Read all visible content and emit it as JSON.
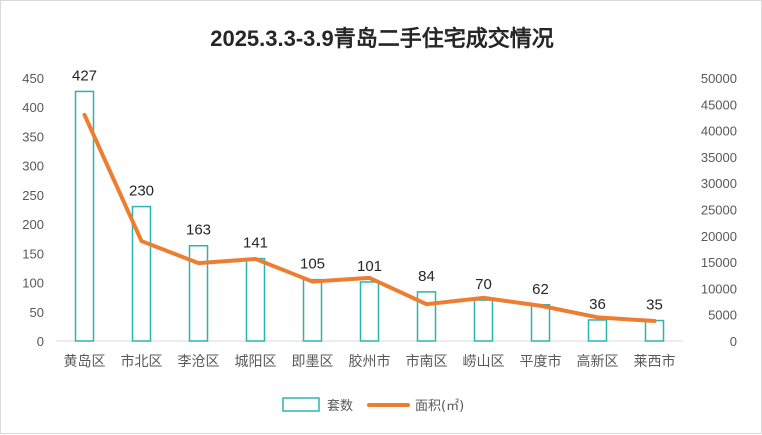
{
  "chart_data": {
    "type": "bar+line",
    "title": "2025.3.3-3.9青岛二手住宅成交情况",
    "categories": [
      "黄岛区",
      "市北区",
      "李沧区",
      "城阳区",
      "即墨区",
      "胶州市",
      "市南区",
      "崂山区",
      "平度市",
      "高新区",
      "莱西市"
    ],
    "series": [
      {
        "name": "套数",
        "type": "bar",
        "axis": "left",
        "color": "#2BB5B0",
        "values": [
          427,
          230,
          163,
          141,
          105,
          101,
          84,
          70,
          62,
          36,
          35
        ]
      },
      {
        "name": "面积(㎡)",
        "type": "line",
        "axis": "right",
        "color": "#ED7D31",
        "values": [
          43000,
          19000,
          14800,
          15600,
          11300,
          12000,
          7000,
          8200,
          6700,
          4500,
          3800
        ]
      }
    ],
    "y_left": {
      "min": 0,
      "max": 450,
      "step": 50
    },
    "y_right": {
      "min": 0,
      "max": 50000,
      "step": 5000
    },
    "legend_position": "bottom",
    "grid": false
  }
}
